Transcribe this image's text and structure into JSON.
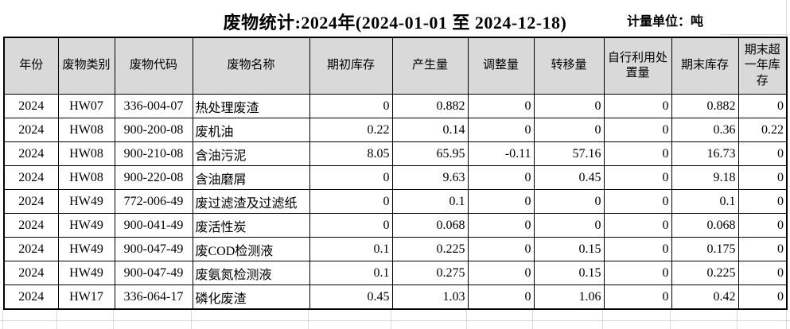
{
  "title": "废物统计:2024年(2024-01-01 至 2024-12-18)",
  "unit_label": "计量单位：吨",
  "table": {
    "columns": [
      "年份",
      "废物类别",
      "废物代码",
      "废物名称",
      "期初库存",
      "产生量",
      "调整量",
      "转移量",
      "自行利用处置量",
      "期末库存",
      "期末超一年库存"
    ],
    "rows": [
      [
        "2024",
        "HW07",
        "336-004-07",
        "热处理废渣",
        "0",
        "0.882",
        "0",
        "0",
        "0",
        "0.882",
        "0"
      ],
      [
        "2024",
        "HW08",
        "900-200-08",
        "废机油",
        "0.22",
        "0.14",
        "0",
        "0",
        "0",
        "0.36",
        "0.22"
      ],
      [
        "2024",
        "HW08",
        "900-210-08",
        "含油污泥",
        "8.05",
        "65.95",
        "-0.11",
        "57.16",
        "0",
        "16.73",
        "0"
      ],
      [
        "2024",
        "HW08",
        "900-220-08",
        "含油磨屑",
        "0",
        "9.63",
        "0",
        "0.45",
        "0",
        "9.18",
        "0"
      ],
      [
        "2024",
        "HW49",
        "772-006-49",
        "废过滤渣及过滤纸",
        "0",
        "0.1",
        "0",
        "0",
        "0",
        "0.1",
        "0"
      ],
      [
        "2024",
        "HW49",
        "900-041-49",
        "废活性炭",
        "0",
        "0.068",
        "0",
        "0",
        "0",
        "0.068",
        "0"
      ],
      [
        "2024",
        "HW49",
        "900-047-49",
        "废COD检测液",
        "0.1",
        "0.225",
        "0",
        "0.15",
        "0",
        "0.175",
        "0"
      ],
      [
        "2024",
        "HW49",
        "900-047-49",
        "废氨氮检测液",
        "0.1",
        "0.275",
        "0",
        "0.15",
        "0",
        "0.225",
        "0"
      ],
      [
        "2024",
        "HW17",
        "336-064-17",
        "磷化废渣",
        "0.45",
        "1.03",
        "0",
        "1.06",
        "0",
        "0.42",
        "0"
      ]
    ]
  },
  "colors": {
    "background": "#ffffff",
    "text": "#000000",
    "table_border": "#000000",
    "header_fill": "#d9d9d9",
    "faint_gridline": "#d9d9d9"
  }
}
